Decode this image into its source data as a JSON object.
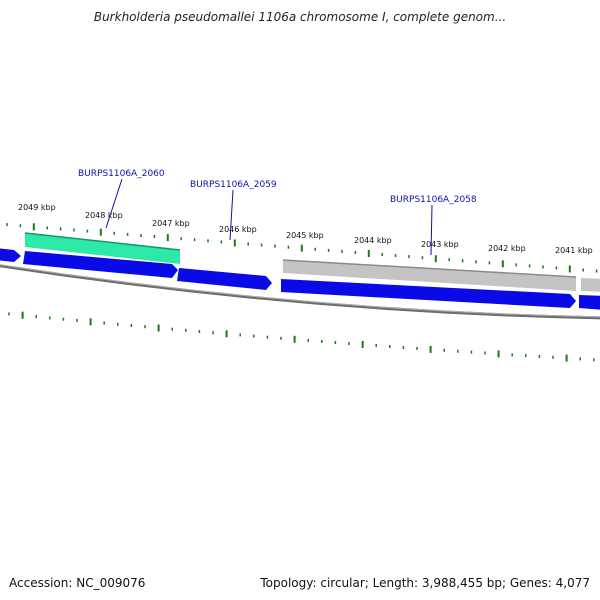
{
  "title": "Burkholderia pseudomallei 1106a chromosome I, complete genom...",
  "footer": {
    "accession": "Accession: NC_009076",
    "summary": "Topology: circular; Length: 3,988,455 bp; Genes: 4,077"
  },
  "colors": {
    "forward_gene": "#0a0ae6",
    "highlight_gene": "#2ee8a8",
    "gray_feature": "#c4c4c4",
    "backbone": "#808080",
    "tick": "#1a7a1a",
    "label": "#1010b0"
  },
  "scale_labels": [
    "2049 kbp",
    "2048 kbp",
    "2047 kbp",
    "2046 kbp",
    "2045 kbp",
    "2044 kbp",
    "2043 kbp",
    "2042 kbp",
    "2041 kbp"
  ],
  "gene_labels": [
    "BURPS1106A_2060",
    "BURPS1106A_2059",
    "BURPS1106A_2058"
  ]
}
